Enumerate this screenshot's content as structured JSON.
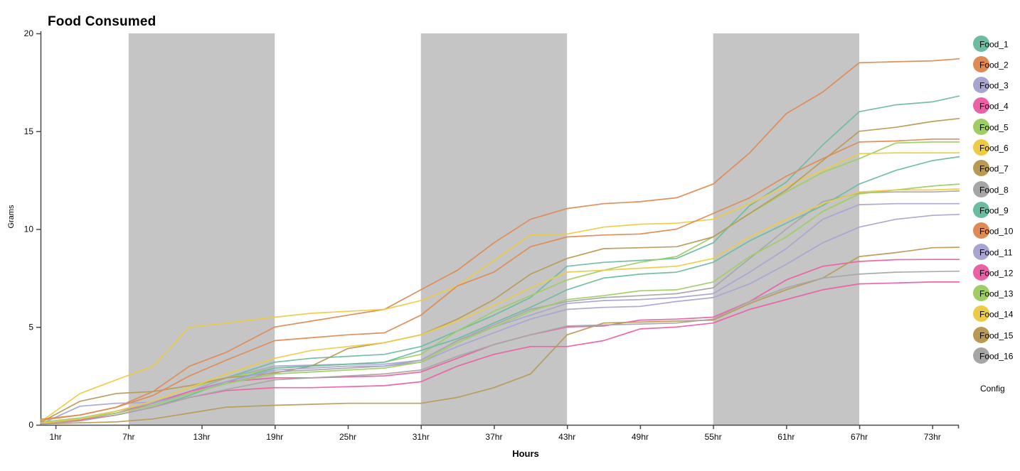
{
  "title": "Food Consumed",
  "axes": {
    "x": {
      "label": "Hours",
      "tick_labels": [
        "1hr",
        "7hr",
        "13hr",
        "19hr",
        "25hr",
        "31hr",
        "37hr",
        "43hr",
        "49hr",
        "55hr",
        "61hr",
        "67hr",
        "73hr"
      ],
      "tick_hours": [
        1,
        7,
        13,
        19,
        25,
        31,
        37,
        43,
        49,
        55,
        61,
        67,
        73
      ],
      "domain": [
        0,
        75.2
      ]
    },
    "y": {
      "label": "Grams",
      "tick_values": [
        0,
        5,
        10,
        15,
        20
      ],
      "domain": [
        0,
        20
      ]
    }
  },
  "shaded_bands": [
    {
      "start_hour": 7,
      "end_hour": 19
    },
    {
      "start_hour": 31,
      "end_hour": 43
    },
    {
      "start_hour": 55,
      "end_hour": 67
    }
  ],
  "legend": {
    "config_label": "Config"
  },
  "colors": {
    "band": "#c5c5c5",
    "axis": "#4a4a4a",
    "text": "#000000",
    "background": "#ffffff"
  },
  "chart_data": {
    "type": "line",
    "title": "Food Consumed",
    "xlabel": "Hours",
    "ylabel": "Grams",
    "xlim": [
      0,
      75.2
    ],
    "ylim": [
      0,
      20
    ],
    "grid": false,
    "legend_position": "right",
    "x_hours": [
      0,
      3,
      6,
      9,
      12,
      15,
      19,
      22,
      25,
      28,
      31,
      34,
      37,
      40,
      43,
      46,
      49,
      52,
      55,
      58,
      61,
      64,
      67,
      70,
      73,
      75.2
    ],
    "series": [
      {
        "name": "Food_1",
        "color": "#6cbca2",
        "values": [
          0.1,
          0.3,
          0.7,
          1.1,
          1.7,
          2.4,
          3.2,
          3.4,
          3.5,
          3.6,
          4.0,
          4.8,
          5.6,
          6.5,
          8.1,
          8.3,
          8.4,
          8.5,
          9.3,
          11.2,
          12.4,
          14.3,
          16.0,
          16.35,
          16.5,
          16.8
        ]
      },
      {
        "name": "Food_2",
        "color": "#df8a52",
        "values": [
          0.25,
          0.5,
          0.9,
          1.7,
          3.0,
          3.7,
          5.0,
          5.3,
          5.6,
          5.9,
          6.9,
          7.9,
          9.3,
          10.5,
          11.05,
          11.3,
          11.4,
          11.6,
          12.3,
          13.9,
          15.9,
          17.0,
          18.5,
          18.55,
          18.6,
          18.7
        ]
      },
      {
        "name": "Food_3",
        "color": "#a8a5d3",
        "values": [
          0.1,
          0.95,
          1.1,
          1.15,
          1.7,
          2.4,
          3.0,
          3.05,
          3.1,
          3.1,
          3.3,
          4.3,
          5.0,
          5.6,
          6.2,
          6.35,
          6.4,
          6.5,
          6.7,
          7.8,
          9.0,
          10.5,
          11.25,
          11.3,
          11.3,
          11.3
        ]
      },
      {
        "name": "Food_4",
        "color": "#ec60a6",
        "values": [
          0.1,
          0.3,
          0.6,
          1.1,
          1.7,
          2.2,
          2.4,
          2.4,
          2.45,
          2.5,
          2.7,
          3.4,
          4.1,
          4.6,
          5.0,
          5.05,
          5.35,
          5.4,
          5.5,
          6.3,
          7.4,
          8.1,
          8.35,
          8.44,
          8.45,
          8.45
        ]
      },
      {
        "name": "Food_5",
        "color": "#9ecd64",
        "values": [
          0.15,
          0.35,
          0.7,
          1.2,
          1.9,
          2.4,
          2.9,
          3.0,
          3.1,
          3.2,
          3.6,
          4.8,
          5.8,
          6.6,
          7.4,
          7.9,
          8.3,
          8.6,
          9.6,
          10.8,
          11.9,
          12.9,
          13.6,
          14.4,
          14.45,
          14.45
        ]
      },
      {
        "name": "Food_6",
        "color": "#eecb45",
        "values": [
          0.25,
          1.6,
          2.3,
          3.0,
          5.0,
          5.2,
          5.5,
          5.7,
          5.8,
          5.9,
          6.35,
          7.1,
          8.4,
          9.7,
          9.75,
          10.1,
          10.25,
          10.3,
          10.5,
          11.3,
          12.2,
          13.0,
          13.85,
          13.9,
          13.9,
          13.9
        ]
      },
      {
        "name": "Food_7",
        "color": "#b99a55",
        "values": [
          0.2,
          1.2,
          1.6,
          1.7,
          2.0,
          2.4,
          2.65,
          3.0,
          3.9,
          4.2,
          4.6,
          5.4,
          6.4,
          7.7,
          8.5,
          9.0,
          9.05,
          9.1,
          9.6,
          10.8,
          12.0,
          13.5,
          15.0,
          15.2,
          15.5,
          15.65
        ]
      },
      {
        "name": "Food_8",
        "color": "#a6a6a6",
        "values": [
          0.1,
          0.3,
          0.6,
          1.0,
          1.6,
          2.1,
          2.7,
          2.8,
          2.9,
          3.0,
          3.3,
          4.3,
          5.1,
          5.9,
          6.3,
          6.5,
          6.6,
          6.7,
          7.0,
          8.5,
          10.0,
          11.4,
          11.85,
          11.9,
          11.9,
          11.95
        ]
      },
      {
        "name": "Food_9",
        "color": "#6cbca2",
        "values": [
          0.1,
          0.25,
          0.5,
          0.9,
          1.5,
          2.2,
          2.9,
          3.0,
          3.1,
          3.2,
          3.8,
          4.4,
          5.2,
          6.0,
          6.9,
          7.5,
          7.7,
          7.8,
          8.3,
          9.4,
          10.3,
          11.2,
          12.3,
          13.0,
          13.5,
          13.7
        ]
      },
      {
        "name": "Food_10",
        "color": "#df8a52",
        "values": [
          0.3,
          0.5,
          0.9,
          1.5,
          2.5,
          3.3,
          4.3,
          4.45,
          4.6,
          4.7,
          5.6,
          7.1,
          7.8,
          9.1,
          9.6,
          9.7,
          9.75,
          10.0,
          10.8,
          11.6,
          12.7,
          13.6,
          14.45,
          14.5,
          14.6,
          14.6
        ]
      },
      {
        "name": "Food_11",
        "color": "#a8a5d3",
        "values": [
          0.1,
          0.3,
          0.7,
          1.1,
          1.6,
          2.2,
          2.8,
          2.9,
          3.0,
          3.0,
          3.2,
          4.0,
          4.7,
          5.4,
          5.9,
          6.0,
          6.05,
          6.3,
          6.5,
          7.2,
          8.2,
          9.3,
          10.1,
          10.5,
          10.7,
          10.75
        ]
      },
      {
        "name": "Food_12",
        "color": "#ec60a6",
        "values": [
          0.1,
          0.25,
          0.5,
          0.9,
          1.4,
          1.75,
          1.9,
          1.9,
          1.95,
          2.0,
          2.2,
          3.0,
          3.6,
          4.0,
          4.0,
          4.3,
          4.9,
          5.0,
          5.2,
          5.9,
          6.4,
          6.9,
          7.2,
          7.25,
          7.3,
          7.3
        ]
      },
      {
        "name": "Food_13",
        "color": "#9ecd64",
        "values": [
          0.1,
          0.3,
          0.6,
          1.0,
          1.6,
          2.1,
          2.6,
          2.7,
          2.8,
          2.9,
          3.2,
          4.2,
          5.0,
          5.8,
          6.4,
          6.6,
          6.85,
          6.9,
          7.3,
          8.6,
          9.6,
          10.9,
          11.8,
          12.0,
          12.2,
          12.3
        ]
      },
      {
        "name": "Food_14",
        "color": "#eecb45",
        "values": [
          0.1,
          0.3,
          0.7,
          1.2,
          1.9,
          2.6,
          3.4,
          3.8,
          4.0,
          4.2,
          4.6,
          5.3,
          6.1,
          7.0,
          7.8,
          7.9,
          8.0,
          8.1,
          8.5,
          9.6,
          10.5,
          11.3,
          11.9,
          12.0,
          12.0,
          12.05
        ]
      },
      {
        "name": "Food_15",
        "color": "#b99a55",
        "values": [
          0.05,
          0.1,
          0.15,
          0.3,
          0.6,
          0.9,
          1.0,
          1.05,
          1.1,
          1.1,
          1.1,
          1.4,
          1.9,
          2.6,
          4.6,
          5.2,
          5.25,
          5.3,
          5.35,
          6.2,
          6.9,
          7.5,
          8.6,
          8.8,
          9.05,
          9.07
        ]
      },
      {
        "name": "Food_16",
        "color": "#a6a6a6",
        "values": [
          0.05,
          0.2,
          0.5,
          0.9,
          1.4,
          1.8,
          2.3,
          2.4,
          2.5,
          2.6,
          2.8,
          3.5,
          4.1,
          4.6,
          5.05,
          5.1,
          5.15,
          5.2,
          5.4,
          6.3,
          7.0,
          7.5,
          7.7,
          7.8,
          7.83,
          7.85
        ]
      }
    ]
  }
}
